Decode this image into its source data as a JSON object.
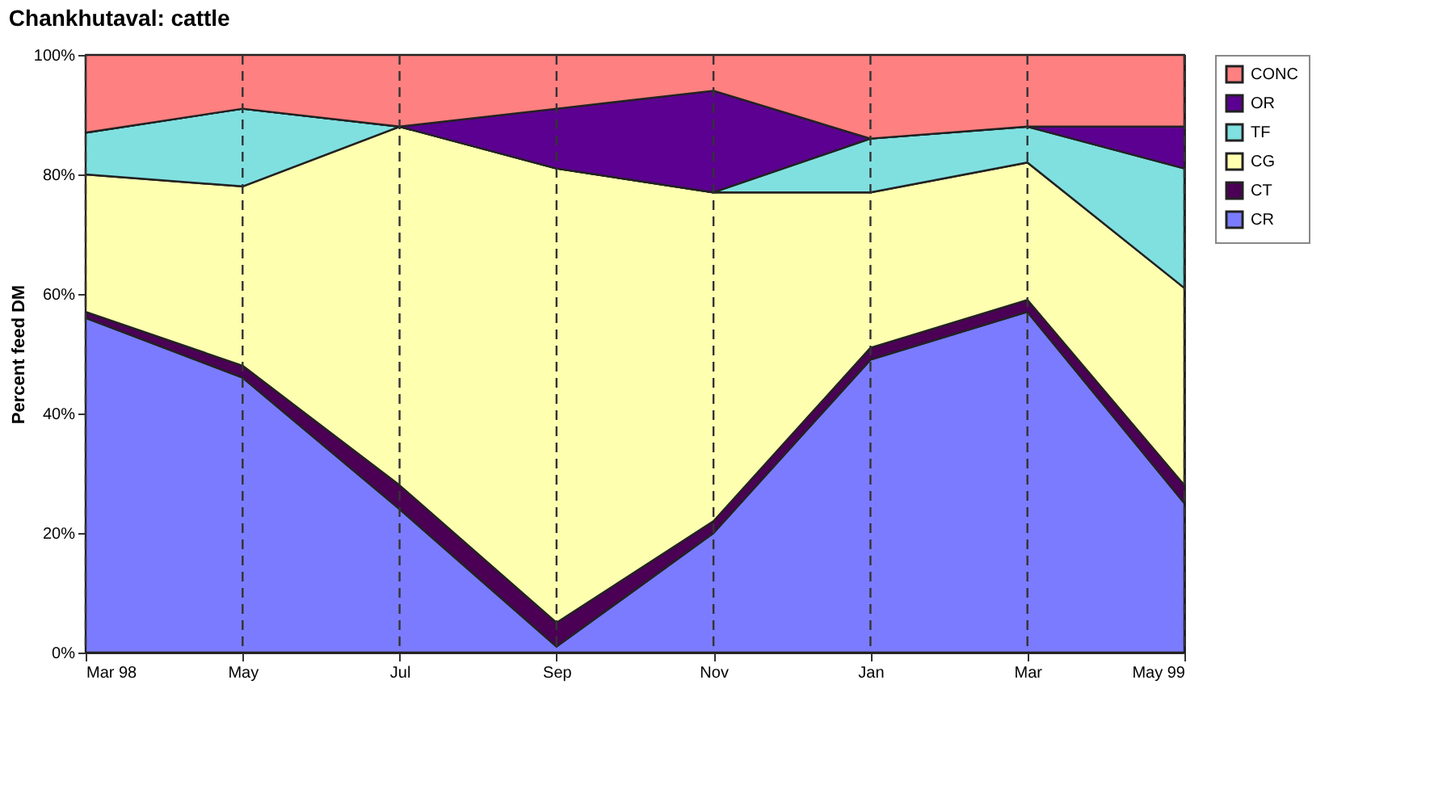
{
  "chart_data": {
    "type": "area",
    "stacked": true,
    "title": "Chankhutaval: cattle",
    "ylabel": "Percent feed DM",
    "categories": [
      "Mar 98",
      "May",
      "Jul",
      "Sep",
      "Nov",
      "Jan",
      "Mar",
      "May 99"
    ],
    "series": [
      {
        "name": "CR",
        "color": "#7b7bff",
        "values": [
          56,
          46,
          24,
          1,
          20,
          49,
          57,
          25
        ]
      },
      {
        "name": "CT",
        "color": "#4b0055",
        "values": [
          1,
          2,
          4,
          4,
          2,
          2,
          2,
          3
        ]
      },
      {
        "name": "CG",
        "color": "#ffffb0",
        "values": [
          23,
          30,
          60,
          76,
          55,
          26,
          23,
          33
        ]
      },
      {
        "name": "TF",
        "color": "#80e0e0",
        "values": [
          7,
          13,
          0,
          0,
          0,
          9,
          6,
          20
        ]
      },
      {
        "name": "OR",
        "color": "#5b0090",
        "values": [
          0,
          0,
          0,
          10,
          17,
          0,
          0,
          7
        ]
      },
      {
        "name": "CONC",
        "color": "#ff8080",
        "values": [
          13,
          9,
          12,
          9,
          6,
          14,
          12,
          12
        ]
      }
    ],
    "ylim": [
      0,
      100
    ],
    "yticks": [
      {
        "value": 0,
        "label": "0%"
      },
      {
        "value": 20,
        "label": "20%"
      },
      {
        "value": 40,
        "label": "40%"
      },
      {
        "value": 60,
        "label": "60%"
      },
      {
        "value": 80,
        "label": "80%"
      },
      {
        "value": 100,
        "label": "100%"
      }
    ],
    "grid": "x",
    "legend": "right"
  }
}
